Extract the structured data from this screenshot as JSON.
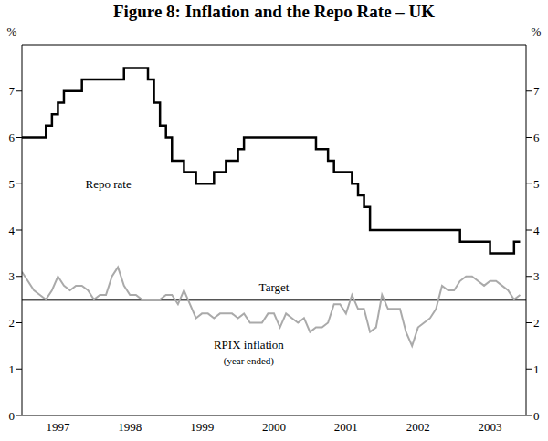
{
  "chart_data": {
    "type": "line",
    "title": "Figure 8: Inflation and the Repo Rate – UK",
    "y_label": "%",
    "x": [
      1997,
      1997.083,
      1997.167,
      1997.25,
      1997.333,
      1997.417,
      1997.5,
      1997.583,
      1997.667,
      1997.75,
      1997.833,
      1997.917,
      1998,
      1998.083,
      1998.167,
      1998.25,
      1998.333,
      1998.417,
      1998.5,
      1998.583,
      1998.667,
      1998.75,
      1998.833,
      1998.917,
      1999,
      1999.083,
      1999.167,
      1999.25,
      1999.333,
      1999.417,
      1999.5,
      1999.583,
      1999.667,
      1999.75,
      1999.833,
      1999.917,
      2000,
      2000.083,
      2000.167,
      2000.25,
      2000.333,
      2000.417,
      2000.5,
      2000.583,
      2000.667,
      2000.75,
      2000.833,
      2000.917,
      2001,
      2001.083,
      2001.167,
      2001.25,
      2001.333,
      2001.417,
      2001.5,
      2001.583,
      2001.667,
      2001.75,
      2001.833,
      2001.917,
      2002,
      2002.083,
      2002.167,
      2002.25,
      2002.333,
      2002.417,
      2002.5,
      2002.583,
      2002.667,
      2002.75,
      2002.833,
      2002.917,
      2003,
      2003.083,
      2003.167,
      2003.25,
      2003.333,
      2003.417,
      2003.5,
      2003.583,
      2003.667,
      2003.75,
      2003.833,
      2003.917
    ],
    "series": [
      {
        "name": "Repo rate",
        "color": "#000000",
        "line_style": "step",
        "values": [
          6,
          6,
          6,
          6,
          6.25,
          6.5,
          6.75,
          7,
          7,
          7,
          7.25,
          7.25,
          7.25,
          7.25,
          7.25,
          7.25,
          7.25,
          7.5,
          7.5,
          7.5,
          7.5,
          7.25,
          6.75,
          6.25,
          6,
          5.5,
          5.5,
          5.25,
          5.25,
          5,
          5,
          5,
          5.25,
          5.25,
          5.5,
          5.5,
          5.75,
          6,
          6,
          6,
          6,
          6,
          6,
          6,
          6,
          6,
          6,
          6,
          6,
          5.75,
          5.75,
          5.5,
          5.25,
          5.25,
          5.25,
          5,
          4.75,
          4.5,
          4,
          4,
          4,
          4,
          4,
          4,
          4,
          4,
          4,
          4,
          4,
          4,
          4,
          4,
          4,
          3.75,
          3.75,
          3.75,
          3.75,
          3.75,
          3.5,
          3.5,
          3.5,
          3.5,
          3.75,
          3.75
        ]
      },
      {
        "name": "RPIX inflation",
        "note": "(year ended)",
        "color": "#aaaaaa",
        "line_style": "solid",
        "values": [
          3.1,
          2.9,
          2.7,
          2.6,
          2.5,
          2.7,
          3.0,
          2.8,
          2.7,
          2.8,
          2.8,
          2.7,
          2.5,
          2.6,
          2.6,
          3.0,
          3.2,
          2.8,
          2.6,
          2.6,
          2.5,
          2.5,
          2.5,
          2.5,
          2.6,
          2.6,
          2.4,
          2.7,
          2.4,
          2.1,
          2.2,
          2.2,
          2.1,
          2.2,
          2.2,
          2.2,
          2.1,
          2.2,
          2.0,
          2.0,
          2.0,
          2.2,
          2.2,
          1.9,
          2.2,
          2.1,
          2.0,
          2.1,
          1.8,
          1.9,
          1.9,
          2.0,
          2.4,
          2.4,
          2.2,
          2.6,
          2.3,
          2.3,
          1.8,
          1.9,
          2.6,
          2.3,
          2.3,
          2.3,
          1.8,
          1.5,
          1.9,
          2.0,
          2.1,
          2.3,
          2.8,
          2.7,
          2.7,
          2.9,
          3.0,
          3.0,
          2.9,
          2.8,
          2.9,
          2.9,
          2.8,
          2.7,
          2.5,
          2.6
        ]
      }
    ],
    "target": {
      "value": 2.5,
      "label": "Target",
      "color": "#555555"
    },
    "xlim": [
      1997,
      2004
    ],
    "xticks": [
      {
        "value": 1997.5,
        "label": "1997"
      },
      {
        "value": 1998.5,
        "label": "1998"
      },
      {
        "value": 1999.5,
        "label": "1999"
      },
      {
        "value": 2000.5,
        "label": "2000"
      },
      {
        "value": 2001.5,
        "label": "2001"
      },
      {
        "value": 2002.5,
        "label": "2002"
      },
      {
        "value": 2003.5,
        "label": "2003"
      }
    ],
    "ylim": [
      0,
      8
    ],
    "yticks": [
      0,
      1,
      2,
      3,
      4,
      5,
      6,
      7
    ],
    "grid": false
  }
}
